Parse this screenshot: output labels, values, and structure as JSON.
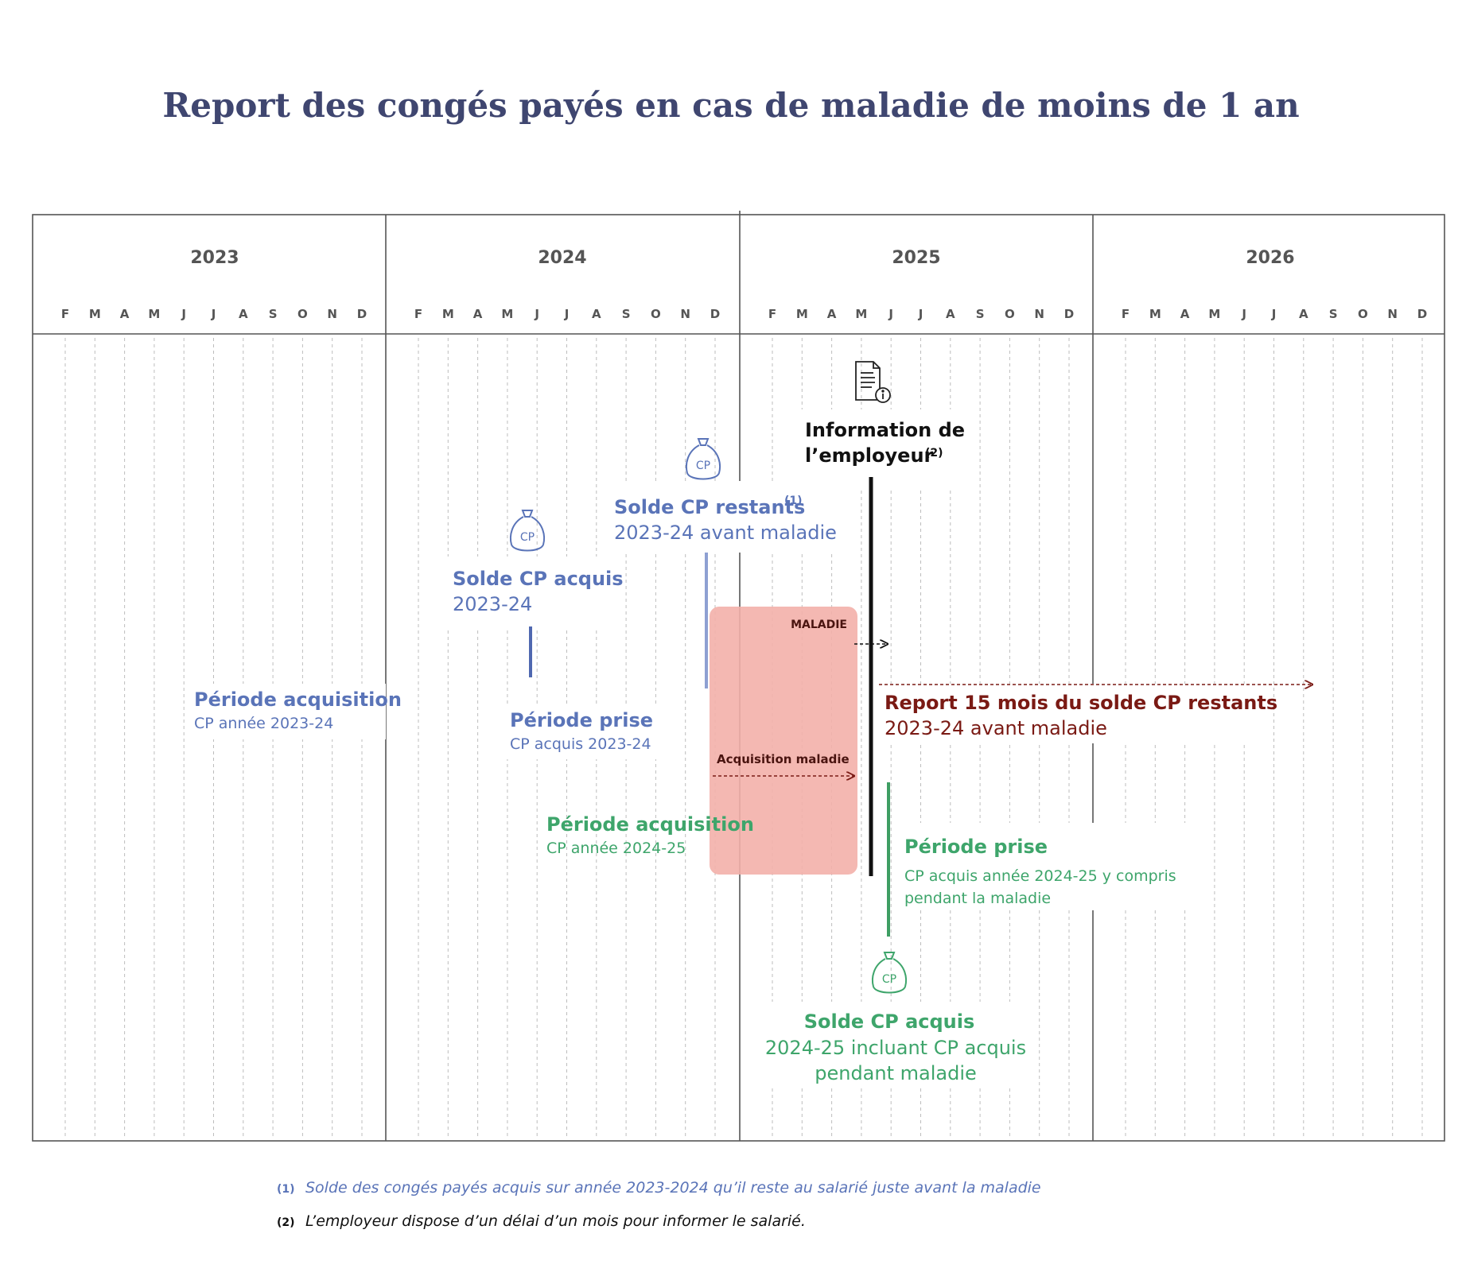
{
  "title": "Report des congés payés en cas de maladie de moins de 1 an",
  "years": [
    "2023",
    "2024",
    "2025",
    "2026"
  ],
  "months": [
    "F",
    "M",
    "A",
    "M",
    "J",
    "J",
    "A",
    "S",
    "O",
    "N",
    "D"
  ],
  "colors": {
    "title": "#3f4670",
    "blue": "#5a74b8",
    "green": "#3ea56b",
    "red": "#e9736e",
    "darkred": "#7a1a14",
    "maladie_zone": "#f3b0aa",
    "grid": "#555555"
  },
  "icons": {
    "money_bag": "money-bag-cp-icon",
    "document": "document-info-icon"
  },
  "labels": {
    "cp_bag": "CP",
    "maladie": "MALADIE",
    "acquisition_maladie": "Acquisition maladie",
    "info_employeur_line1": "Information de",
    "info_employeur_line2": "l’employeur",
    "info_employeur_note": "(2)",
    "solde_acquis_2324_title": "Solde CP acquis",
    "solde_acquis_2324_sub": "2023-24",
    "solde_restants_title": "Solde CP restants",
    "solde_restants_note": "(1)",
    "solde_restants_sub": "2023-24 avant maladie",
    "periode_acq_2324_title": "Période acquisition",
    "periode_acq_2324_sub": "CP année 2023-24",
    "periode_prise_2324_title": "Période prise",
    "periode_prise_2324_sub": "CP acquis 2023-24",
    "report_title": "Report 15 mois du solde CP restants",
    "report_sub": "2023-24 avant maladie",
    "periode_acq_2425_title": "Période acquisition",
    "periode_acq_2425_sub": "CP année 2024-25",
    "periode_prise_2425_title": "Période prise",
    "periode_prise_2425_sub1": "CP acquis année 2024-25 y compris",
    "periode_prise_2425_sub2": "pendant la maladie",
    "solde_acquis_2425_title": "Solde CP acquis",
    "solde_acquis_2425_sub1": "2024-25 incluant CP acquis",
    "solde_acquis_2425_sub2": "pendant maladie"
  },
  "footnotes": [
    {
      "marker": "(1)",
      "text": "Solde des congés payés acquis sur année 2023-2024 qu’il reste au salarié juste avant la maladie"
    },
    {
      "marker": "(2)",
      "text": "L’employeur dispose d’un délai d’un mois pour informer le salarié."
    }
  ]
}
